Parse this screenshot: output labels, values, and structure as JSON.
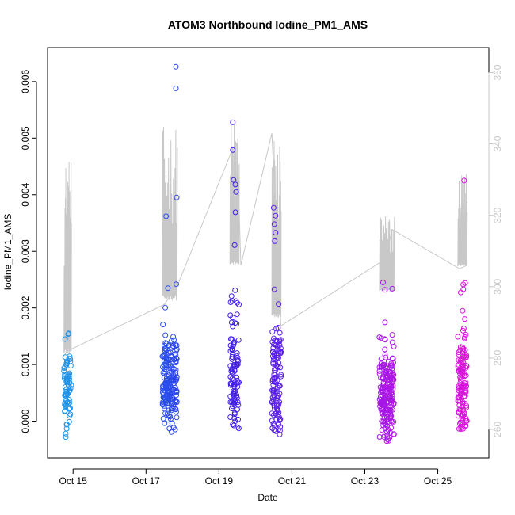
{
  "chart_data": {
    "type": "scatter",
    "title": "ATOM3 Northbound Iodine_PM1_AMS",
    "xlabel": "Date",
    "ylabel": "Iodine_PM1_AMS",
    "x_unit": "day of October",
    "xlim": [
      14.3,
      26.4
    ],
    "ylim": [
      -0.00065,
      0.0066
    ],
    "y2lim": [
      252,
      367
    ],
    "x_ticks": [
      {
        "value": 15,
        "label": "Oct 15"
      },
      {
        "value": 17,
        "label": "Oct 17"
      },
      {
        "value": 19,
        "label": "Oct 19"
      },
      {
        "value": 21,
        "label": "Oct 21"
      },
      {
        "value": 23,
        "label": "Oct 23"
      },
      {
        "value": 25,
        "label": "Oct 25"
      }
    ],
    "y_ticks": [
      {
        "value": 0.0,
        "label": "0.000"
      },
      {
        "value": 0.001,
        "label": "0.001"
      },
      {
        "value": 0.002,
        "label": "0.002"
      },
      {
        "value": 0.003,
        "label": "0.003"
      },
      {
        "value": 0.004,
        "label": "0.004"
      },
      {
        "value": 0.005,
        "label": "0.005"
      },
      {
        "value": 0.006,
        "label": "0.006"
      }
    ],
    "y2_ticks": [
      {
        "value": 260,
        "label": "260"
      },
      {
        "value": 280,
        "label": "280"
      },
      {
        "value": 300,
        "label": "300"
      },
      {
        "value": 320,
        "label": "320"
      },
      {
        "value": 340,
        "label": "340"
      },
      {
        "value": 360,
        "label": "360"
      }
    ],
    "point_color_ramp": [
      "#1fa0e6",
      "#1e64f0",
      "#3c1ee6",
      "#6e1ee6",
      "#b414e6",
      "#e614d7"
    ],
    "line_color": "#c8c8c8",
    "series": [
      {
        "name": "Iodine_PM1_AMS",
        "axis": "left",
        "style": "points",
        "groups": [
          {
            "x": [
              14.75,
              14.95
            ],
            "n": 70,
            "y_min": -0.00028,
            "y_max": 0.00155,
            "center": 0.0006,
            "spread": 0.00035,
            "extremes": [
              [
                14.78,
                0.00145
              ],
              [
                14.88,
                0.00155
              ],
              [
                14.8,
                -0.00028
              ],
              [
                14.8,
                -0.00022
              ]
            ]
          },
          {
            "x": [
              17.45,
              17.85
            ],
            "n": 190,
            "y_min": -0.0002,
            "y_max": 0.0063,
            "center": 0.0007,
            "spread": 0.0005,
            "extremes": [
              [
                17.82,
                0.00626
              ],
              [
                17.82,
                0.00588
              ],
              [
                17.84,
                0.00395
              ],
              [
                17.55,
                0.00362
              ],
              [
                17.6,
                0.00235
              ],
              [
                17.83,
                0.00242
              ]
            ]
          },
          {
            "x": [
              19.3,
              19.55
            ],
            "n": 100,
            "y_min": -0.00015,
            "y_max": 0.0053,
            "center": 0.0008,
            "spread": 0.0006,
            "extremes": [
              [
                19.38,
                0.00528
              ],
              [
                19.38,
                0.00479
              ],
              [
                19.4,
                0.00426
              ],
              [
                19.45,
                0.00418
              ],
              [
                19.47,
                0.00405
              ],
              [
                19.45,
                0.00369
              ],
              [
                19.43,
                0.00311
              ]
            ]
          },
          {
            "x": [
              20.45,
              20.7
            ],
            "n": 120,
            "y_min": -0.0003,
            "y_max": 0.0038,
            "center": 0.0007,
            "spread": 0.0006,
            "extremes": [
              [
                20.5,
                0.00377
              ],
              [
                20.55,
                0.00363
              ],
              [
                20.52,
                0.00348
              ],
              [
                20.55,
                0.00333
              ],
              [
                20.53,
                0.00318
              ],
              [
                20.52,
                0.00233
              ]
            ]
          },
          {
            "x": [
              23.4,
              23.8
            ],
            "n": 200,
            "y_min": -0.00035,
            "y_max": 0.00245,
            "center": 0.0005,
            "spread": 0.0005,
            "extremes": [
              [
                23.5,
                0.00245
              ],
              [
                23.55,
                0.00232
              ],
              [
                23.75,
                0.00234
              ],
              [
                23.6,
                -0.00035
              ],
              [
                23.55,
                -0.00025
              ]
            ]
          },
          {
            "x": [
              25.55,
              25.8
            ],
            "n": 130,
            "y_min": -0.00015,
            "y_max": 0.00425,
            "center": 0.0007,
            "spread": 0.0006,
            "extremes": [
              [
                25.72,
                0.00425
              ],
              [
                25.75,
                0.00244
              ],
              [
                25.7,
                0.00233
              ],
              [
                25.68,
                0.00195
              ]
            ]
          }
        ]
      },
      {
        "name": "secondary trace (right axis)",
        "axis": "right",
        "style": "line",
        "path": [
          [
            14.7,
            280
          ],
          [
            14.85,
            282
          ],
          [
            17.5,
            295
          ],
          [
            17.85,
            300
          ],
          [
            19.35,
            338
          ],
          [
            19.5,
            340
          ],
          [
            19.6,
            306
          ],
          [
            20.45,
            343
          ],
          [
            20.7,
            289
          ],
          [
            23.45,
            307
          ],
          [
            23.6,
            309
          ],
          [
            23.75,
            316
          ],
          [
            25.6,
            305
          ],
          [
            25.8,
            306
          ]
        ],
        "spikes": [
          {
            "x": [
              14.75,
              14.95
            ],
            "lo": 280,
            "hi": 336
          },
          {
            "x": [
              17.45,
              17.85
            ],
            "lo": 295,
            "hi": 345
          },
          {
            "x": [
              19.3,
              19.55
            ],
            "lo": 305,
            "hi": 347
          },
          {
            "x": [
              20.45,
              20.7
            ],
            "lo": 290,
            "hi": 343
          },
          {
            "x": [
              23.4,
              23.8
            ],
            "lo": 298,
            "hi": 321
          },
          {
            "x": [
              25.55,
              25.8
            ],
            "lo": 305,
            "hi": 333
          }
        ]
      }
    ]
  }
}
